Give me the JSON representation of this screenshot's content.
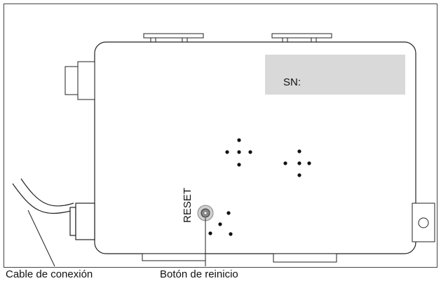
{
  "labels": {
    "serial": "SN:",
    "reset": "RESET",
    "cable": "Cable de conexión",
    "button": "Botón de reinicio"
  }
}
